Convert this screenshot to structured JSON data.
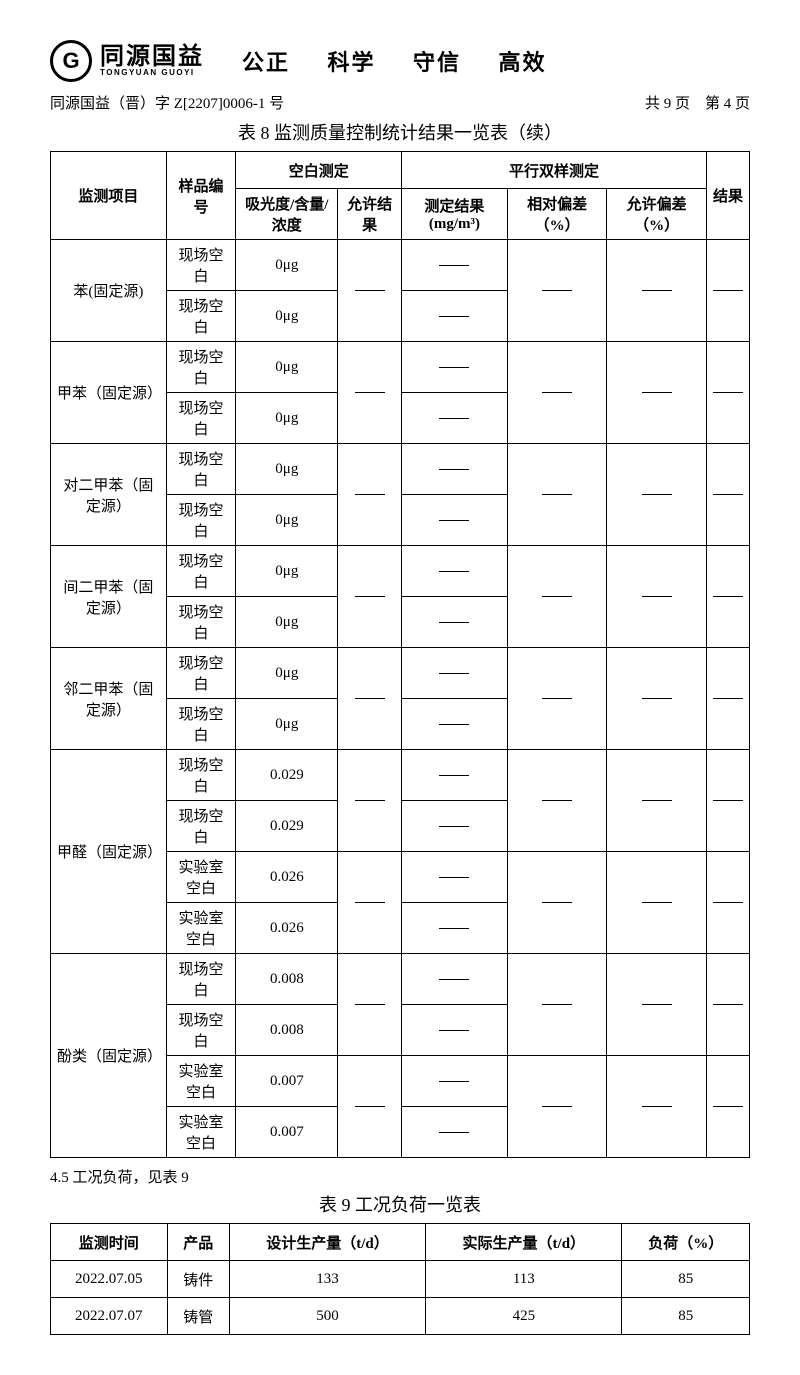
{
  "header": {
    "logo_letter": "G",
    "company_cn": "同源国益",
    "company_en": "TONGYUAN GUOYI",
    "motto": [
      "公正",
      "科学",
      "守信",
      "高效"
    ]
  },
  "doc_id": "同源国益（晋）字 Z[2207]0006-1 号",
  "page_info": "共 9 页　第 4 页",
  "table8": {
    "title": "表 8 监测质量控制统计结果一览表（续）",
    "headers": {
      "c1": "监测项目",
      "c2": "样品编号",
      "g1": "空白测定",
      "g1a": "吸光度/含量/浓度",
      "g1b": "允许结果",
      "g2": "平行双样测定",
      "g2a": "测定结果(mg/m³)",
      "g2b": "相对偏差（%）",
      "g2c": "允许偏差（%）",
      "c3": "结果"
    },
    "groups": [
      {
        "item": "苯(固定源)",
        "rows": [
          {
            "sample": "现场空白",
            "val": "0μg"
          },
          {
            "sample": "现场空白",
            "val": "0μg"
          }
        ]
      },
      {
        "item": "甲苯（固定源）",
        "rows": [
          {
            "sample": "现场空白",
            "val": "0μg"
          },
          {
            "sample": "现场空白",
            "val": "0μg"
          }
        ]
      },
      {
        "item": "对二甲苯（固定源）",
        "rows": [
          {
            "sample": "现场空白",
            "val": "0μg"
          },
          {
            "sample": "现场空白",
            "val": "0μg"
          }
        ]
      },
      {
        "item": "间二甲苯（固定源）",
        "rows": [
          {
            "sample": "现场空白",
            "val": "0μg"
          },
          {
            "sample": "现场空白",
            "val": "0μg"
          }
        ]
      },
      {
        "item": "邻二甲苯（固定源）",
        "rows": [
          {
            "sample": "现场空白",
            "val": "0μg"
          },
          {
            "sample": "现场空白",
            "val": "0μg"
          }
        ]
      },
      {
        "item": "甲醛（固定源）",
        "rows": [
          {
            "sample": "现场空白",
            "val": "0.029"
          },
          {
            "sample": "现场空白",
            "val": "0.029"
          },
          {
            "sample": "实验室空白",
            "val": "0.026"
          },
          {
            "sample": "实验室空白",
            "val": "0.026"
          }
        ]
      },
      {
        "item": "酚类（固定源）",
        "rows": [
          {
            "sample": "现场空白",
            "val": "0.008"
          },
          {
            "sample": "现场空白",
            "val": "0.008"
          },
          {
            "sample": "实验室空白",
            "val": "0.007"
          },
          {
            "sample": "实验室空白",
            "val": "0.007"
          }
        ]
      }
    ]
  },
  "section45": "4.5 工况负荷，见表 9",
  "table9": {
    "title": "表 9 工况负荷一览表",
    "headers": {
      "c1": "监测时间",
      "c2": "产品",
      "c3": "设计生产量（t/d）",
      "c4": "实际生产量（t/d）",
      "c5": "负荷（%）"
    },
    "rows": [
      {
        "c1": "2022.07.05",
        "c2": "铸件",
        "c3": "133",
        "c4": "113",
        "c5": "85"
      },
      {
        "c1": "2022.07.07",
        "c2": "铸管",
        "c3": "500",
        "c4": "425",
        "c5": "85"
      }
    ]
  }
}
